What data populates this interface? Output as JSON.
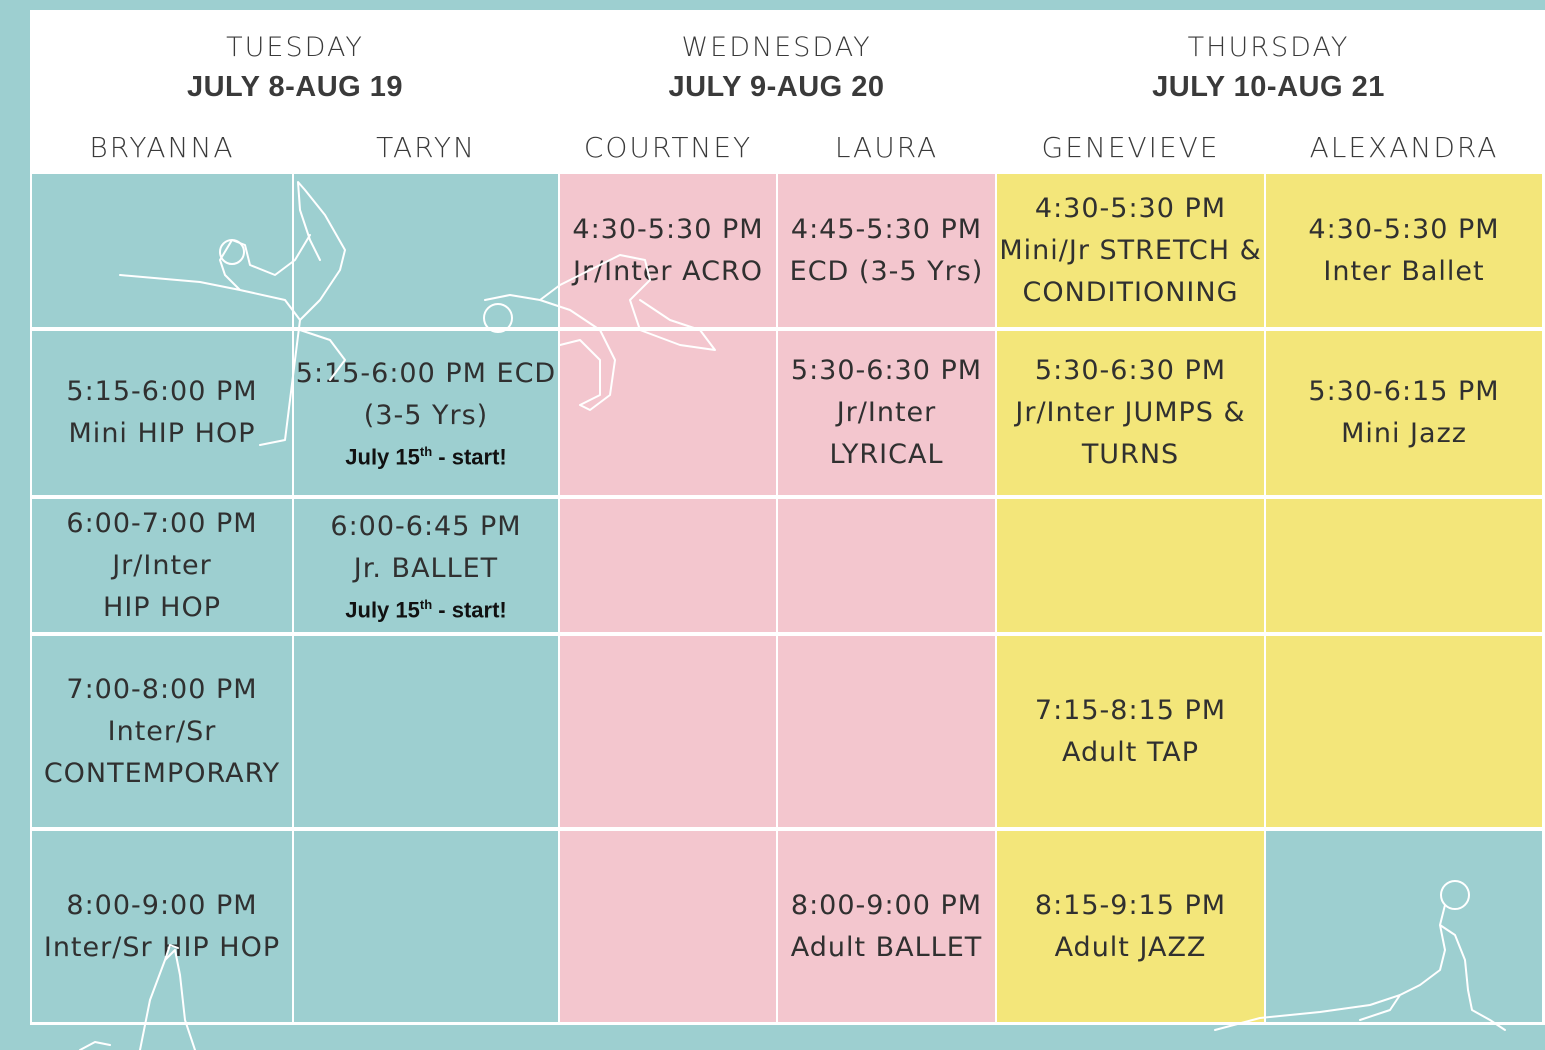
{
  "days": [
    {
      "day": "TUESDAY",
      "range": "JULY 8-AUG 19"
    },
    {
      "day": "WEDNESDAY",
      "range": "JULY 9-AUG 20"
    },
    {
      "day": "THURSDAY",
      "range": "JULY 10-AUG 21"
    }
  ],
  "instructors": [
    "BRYANNA",
    "TARYN",
    "COURTNEY",
    "LAURA",
    "GENEVIEVE",
    "ALEXANDRA"
  ],
  "classes": {
    "bryanna": [
      {
        "lines": []
      },
      {
        "lines": [
          "5:15-6:00 PM",
          "Mini HIP HOP"
        ]
      },
      {
        "lines": [
          "6:00-7:00 PM",
          "Jr/Inter",
          "HIP HOP"
        ]
      },
      {
        "lines": [
          "7:00-8:00 PM",
          "Inter/Sr",
          "CONTEMPORARY"
        ]
      },
      {
        "lines": [
          "8:00-9:00 PM",
          "Inter/Sr HIP HOP"
        ]
      }
    ],
    "taryn": [
      {
        "lines": []
      },
      {
        "lines": [
          "5:15-6:00 PM ECD",
          "(3-5 Yrs)"
        ],
        "note_a": "July 15",
        "note_sup": "th",
        "note_b": " - start!"
      },
      {
        "lines": [
          "6:00-6:45 PM",
          "Jr. BALLET"
        ],
        "note_a": "July 15",
        "note_sup": "th",
        "note_b": " - start!"
      },
      {
        "lines": []
      },
      {
        "lines": []
      }
    ],
    "courtney": [
      {
        "lines": [
          "4:30-5:30 PM",
          "Jr/Inter ACRO"
        ]
      },
      {
        "lines": []
      },
      {
        "lines": []
      },
      {
        "lines": []
      },
      {
        "lines": []
      }
    ],
    "laura": [
      {
        "lines": [
          "4:45-5:30 PM",
          "ECD (3-5 Yrs)"
        ]
      },
      {
        "lines": [
          "5:30-6:30 PM",
          "Jr/Inter",
          "LYRICAL"
        ]
      },
      {
        "lines": []
      },
      {
        "lines": []
      },
      {
        "lines": [
          "8:00-9:00 PM",
          "Adult BALLET"
        ]
      }
    ],
    "genevieve": [
      {
        "lines": [
          "4:30-5:30 PM",
          "Mini/Jr STRETCH &",
          "CONDITIONING"
        ]
      },
      {
        "lines": [
          "5:30-6:30 PM",
          "Jr/Inter JUMPS &",
          "TURNS"
        ]
      },
      {
        "lines": []
      },
      {
        "lines": [
          "7:15-8:15 PM",
          "Adult TAP"
        ]
      },
      {
        "lines": [
          "8:15-9:15 PM",
          "Adult JAZZ"
        ]
      }
    ],
    "alexandra": [
      {
        "lines": [
          "4:30-5:30 PM",
          "Inter Ballet"
        ]
      },
      {
        "lines": [
          "5:30-6:15 PM",
          "Mini Jazz"
        ]
      },
      {
        "lines": []
      },
      {
        "lines": []
      },
      {
        "lines": []
      }
    ]
  },
  "colors": {
    "teal": "#9dcfd0",
    "pink": "#f3c6ce",
    "yellow": "#f3e67a"
  }
}
